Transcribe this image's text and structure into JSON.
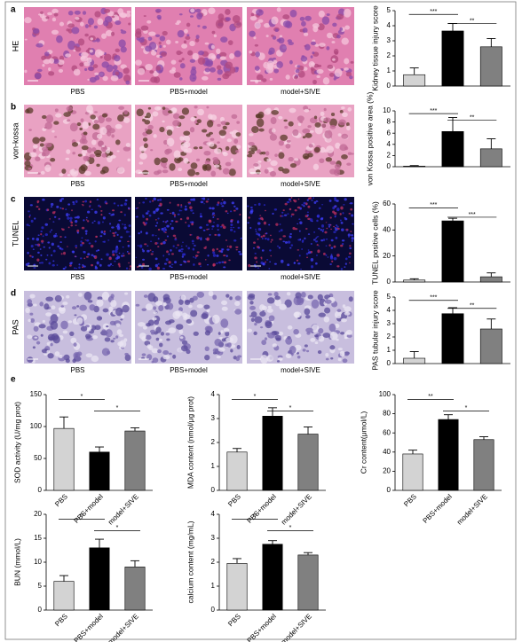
{
  "figure": {
    "rows": [
      {
        "letter": "a",
        "stain": "HE",
        "image_labels": [
          "PBS",
          "PBS+model",
          "model+SIVE"
        ]
      },
      {
        "letter": "b",
        "stain": "von-kossa",
        "image_labels": [
          "PBS",
          "PBS+model",
          "model+SIVE"
        ]
      },
      {
        "letter": "c",
        "stain": "TUNEL",
        "image_labels": [
          "PBS",
          "PBS+model",
          "model+SIVE"
        ]
      },
      {
        "letter": "d",
        "stain": "PAS",
        "image_labels": [
          "PBS",
          "PBS+model",
          "model+SIVE"
        ]
      }
    ],
    "section_e": "e"
  },
  "chart_data": [
    {
      "type": "bar",
      "y_label": "Kidney tissue injury score",
      "categories": [
        null,
        null,
        null
      ],
      "values": [
        0.75,
        3.65,
        2.6
      ],
      "errors": [
        0.45,
        0.5,
        0.55
      ],
      "colors": [
        "#d3d3d3",
        "#000000",
        "#808080"
      ],
      "ylim": [
        0,
        5
      ],
      "yticks": [
        0,
        1,
        2,
        3,
        4,
        5
      ],
      "significance": [
        "***",
        "**"
      ]
    },
    {
      "type": "bar",
      "y_label": "von Kossa positive area (%)",
      "categories": [
        null,
        null,
        null
      ],
      "values": [
        0.1,
        6.3,
        3.2
      ],
      "errors": [
        0.1,
        2.5,
        1.8
      ],
      "colors": [
        "#d3d3d3",
        "#000000",
        "#808080"
      ],
      "ylim": [
        0,
        10
      ],
      "yticks": [
        0,
        2,
        4,
        6,
        8,
        10
      ],
      "significance": [
        "***",
        "**"
      ]
    },
    {
      "type": "bar",
      "y_label": "TUNEL positive cells (%)",
      "categories": [
        null,
        null,
        null
      ],
      "values": [
        1.5,
        47,
        4
      ],
      "errors": [
        1,
        2,
        3
      ],
      "colors": [
        "#d3d3d3",
        "#000000",
        "#808080"
      ],
      "ylim": [
        0,
        60
      ],
      "yticks": [
        0,
        20,
        40,
        60
      ],
      "significance": [
        "***",
        "***"
      ]
    },
    {
      "type": "bar",
      "y_label": "PAS tubular injury score",
      "categories": [
        null,
        null,
        null
      ],
      "values": [
        0.4,
        3.75,
        2.6
      ],
      "errors": [
        0.5,
        0.45,
        0.75
      ],
      "colors": [
        "#d3d3d3",
        "#000000",
        "#808080"
      ],
      "ylim": [
        0,
        5
      ],
      "yticks": [
        0,
        1,
        2,
        3,
        4,
        5
      ],
      "significance": [
        "***",
        "**"
      ]
    },
    {
      "type": "bar",
      "y_label": "SOD activity (U/mg prot)",
      "categories": [
        "PBS",
        "PBS+model",
        "model+SIVE"
      ],
      "values": [
        97,
        60,
        93
      ],
      "errors": [
        18,
        8,
        5
      ],
      "colors": [
        "#d3d3d3",
        "#000000",
        "#808080"
      ],
      "ylim": [
        0,
        150
      ],
      "yticks": [
        0,
        50,
        100,
        150
      ],
      "significance": [
        "*",
        "*"
      ]
    },
    {
      "type": "bar",
      "y_label": "MDA content (nmol/μg prot)",
      "categories": [
        "PBS",
        "PBS+model",
        "model+SIVE"
      ],
      "values": [
        1.6,
        3.1,
        2.35
      ],
      "errors": [
        0.15,
        0.35,
        0.3
      ],
      "colors": [
        "#d3d3d3",
        "#000000",
        "#808080"
      ],
      "ylim": [
        0,
        4
      ],
      "yticks": [
        0,
        1,
        2,
        3,
        4
      ],
      "significance": [
        "*",
        "*"
      ]
    },
    {
      "type": "bar",
      "y_label": "Cr content(μmol/L)",
      "categories": [
        "PBS",
        "PBS+model",
        "model+SIVE"
      ],
      "values": [
        38,
        74,
        53
      ],
      "errors": [
        4,
        5,
        3
      ],
      "colors": [
        "#d3d3d3",
        "#000000",
        "#808080"
      ],
      "ylim": [
        0,
        100
      ],
      "yticks": [
        0,
        20,
        40,
        60,
        80,
        100
      ],
      "significance": [
        "**",
        "*"
      ]
    },
    {
      "type": "bar",
      "y_label": "BUN (mmol/L)",
      "categories": [
        "PBS",
        "PBS+model",
        "model+SIVE"
      ],
      "values": [
        6,
        13,
        9
      ],
      "errors": [
        1.2,
        1.8,
        1.3
      ],
      "colors": [
        "#d3d3d3",
        "#000000",
        "#808080"
      ],
      "ylim": [
        0,
        20
      ],
      "yticks": [
        0,
        5,
        10,
        15,
        20
      ],
      "significance": [
        "**",
        "*"
      ]
    },
    {
      "type": "bar",
      "y_label": "calcium content (mg/mL)",
      "categories": [
        "PBS",
        "PBS+model",
        "model+SIVE"
      ],
      "values": [
        1.95,
        2.75,
        2.3
      ],
      "errors": [
        0.2,
        0.15,
        0.1
      ],
      "colors": [
        "#d3d3d3",
        "#000000",
        "#808080"
      ],
      "ylim": [
        0,
        4
      ],
      "yticks": [
        0,
        1,
        2,
        3,
        4
      ],
      "significance": [
        "**",
        "*"
      ]
    }
  ]
}
